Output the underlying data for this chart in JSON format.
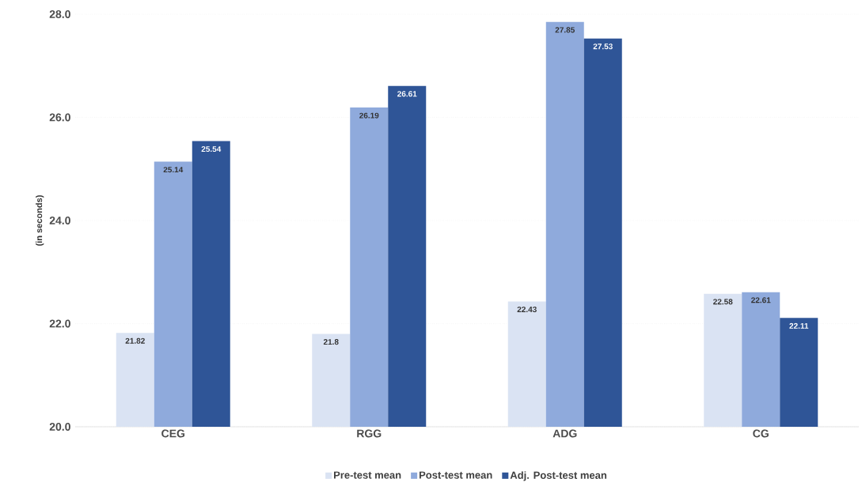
{
  "chart_data": {
    "type": "bar",
    "ylabel": "(in seconds)",
    "categories": [
      "CEG",
      "RGG",
      "ADG",
      "CG"
    ],
    "series": [
      {
        "name": "Pre-test mean",
        "color": "#dae3f3",
        "values": [
          21.82,
          21.8,
          22.43,
          22.58
        ]
      },
      {
        "name": "Post-test mean",
        "color": "#8faadc",
        "values": [
          25.14,
          26.19,
          27.85,
          22.61
        ]
      },
      {
        "name": "Adj. Post-test mean",
        "color": "#2f5597",
        "values": [
          25.54,
          26.61,
          27.53,
          22.11
        ]
      }
    ],
    "ylim": [
      20,
      28
    ],
    "yticks": [
      {
        "value": 20,
        "label": "20.0"
      },
      {
        "value": 22,
        "label": "22.0"
      },
      {
        "value": 24,
        "label": "24.0"
      },
      {
        "value": 26,
        "label": "26.0"
      },
      {
        "value": 28,
        "label": "28.0"
      }
    ],
    "grid": "y",
    "legend": "bottom",
    "data_labels": true
  }
}
